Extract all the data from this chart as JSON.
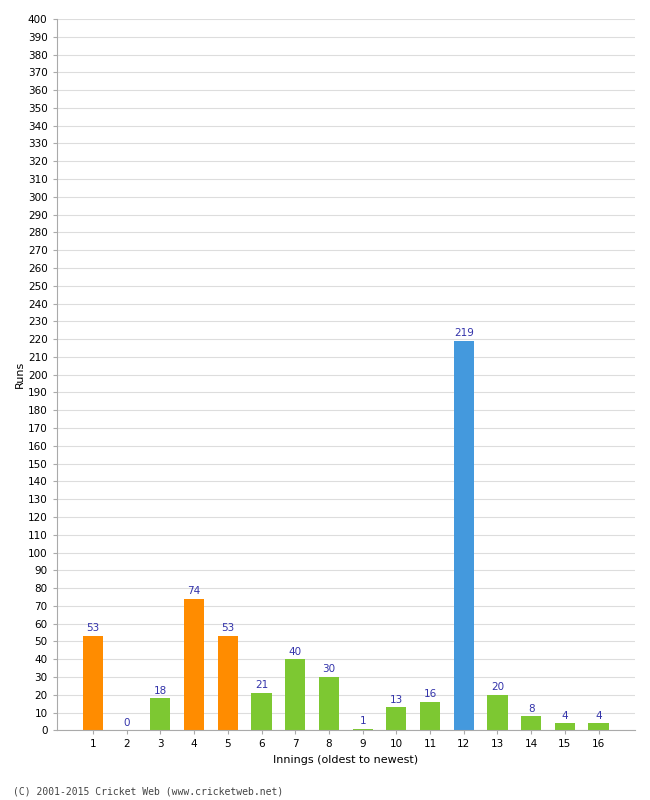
{
  "innings": [
    1,
    2,
    3,
    4,
    5,
    6,
    7,
    8,
    9,
    10,
    11,
    12,
    13,
    14,
    15,
    16
  ],
  "runs": [
    53,
    0,
    18,
    74,
    53,
    21,
    40,
    30,
    1,
    13,
    16,
    219,
    20,
    8,
    4,
    4
  ],
  "colors": [
    "#ff8c00",
    "#ff8c00",
    "#7dc832",
    "#ff8c00",
    "#ff8c00",
    "#7dc832",
    "#7dc832",
    "#7dc832",
    "#7dc832",
    "#7dc832",
    "#7dc832",
    "#4499dd",
    "#7dc832",
    "#7dc832",
    "#7dc832",
    "#7dc832"
  ],
  "ylabel": "Runs",
  "xlabel": "Innings (oldest to newest)",
  "ylim": [
    0,
    400
  ],
  "yticks": [
    0,
    10,
    20,
    30,
    40,
    50,
    60,
    70,
    80,
    90,
    100,
    110,
    120,
    130,
    140,
    150,
    160,
    170,
    180,
    190,
    200,
    210,
    220,
    230,
    240,
    250,
    260,
    270,
    280,
    290,
    300,
    310,
    320,
    330,
    340,
    350,
    360,
    370,
    380,
    390,
    400
  ],
  "footer": "(C) 2001-2015 Cricket Web (www.cricketweb.net)",
  "label_color": "#3333aa",
  "background_color": "#ffffff",
  "grid_color": "#dddddd",
  "bar_width": 0.6
}
